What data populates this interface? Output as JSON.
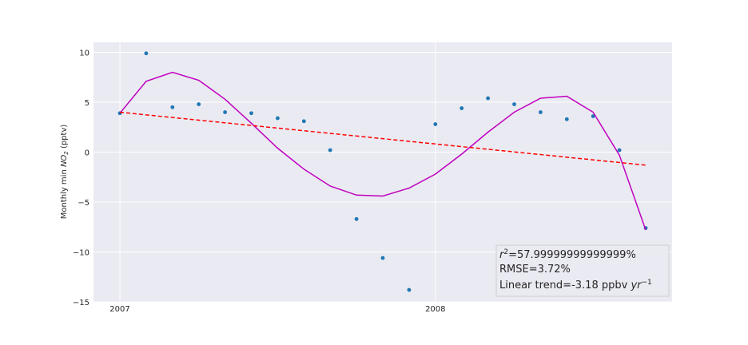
{
  "chart_data": {
    "type": "scatter",
    "ylabel": "Monthly min NO2 (pptv)",
    "ylabel_prefix": "Monthly min ",
    "ylabel_symbol": "NO",
    "ylabel_sub": "2",
    "ylabel_suffix": " (pptv)",
    "xlim": [
      0,
      20
    ],
    "ylim": [
      -15,
      11
    ],
    "x_ticks": [
      {
        "x": 0,
        "label": "2007"
      },
      {
        "x": 12,
        "label": "2008"
      }
    ],
    "y_ticks": [
      {
        "y": 10,
        "label": "10"
      },
      {
        "y": 5,
        "label": "5"
      },
      {
        "y": 0,
        "label": "0"
      },
      {
        "y": -5,
        "label": "−5"
      },
      {
        "y": -10,
        "label": "−10"
      },
      {
        "y": -15,
        "label": "−15"
      }
    ],
    "grid": true,
    "series": [
      {
        "kind": "points",
        "color": "#1f77b4",
        "x": [
          0,
          1,
          2,
          3,
          4,
          5,
          6,
          7,
          8,
          9,
          10,
          11,
          12,
          13,
          14,
          15,
          16,
          17,
          18,
          19,
          20
        ],
        "y": [
          3.9,
          9.9,
          4.5,
          4.8,
          4.0,
          3.9,
          3.4,
          3.1,
          0.2,
          -6.7,
          -10.6,
          -13.8,
          2.8,
          4.4,
          5.4,
          4.8,
          4.0,
          3.3,
          3.6,
          0.2,
          -7.6
        ]
      },
      {
        "kind": "line",
        "style": "solid",
        "color": "#bf00bf",
        "x": [
          0,
          1,
          2,
          3,
          4,
          5,
          6,
          7,
          8,
          9,
          10,
          11,
          12,
          13,
          14,
          15,
          16,
          17,
          18,
          19,
          20
        ],
        "y": [
          3.9,
          7.1,
          8.0,
          7.2,
          5.3,
          2.9,
          0.4,
          -1.7,
          -3.4,
          -4.3,
          -4.4,
          -3.6,
          -2.2,
          -0.2,
          2.0,
          4.0,
          5.4,
          5.6,
          4.0,
          -0.3,
          -7.8
        ]
      },
      {
        "kind": "line",
        "style": "dashed",
        "color": "#ff0000",
        "x": [
          0,
          20
        ],
        "y": [
          4.0,
          -1.3
        ]
      }
    ],
    "annotation": {
      "r2_symbol": "r",
      "r2_sup": "2",
      "r2_value": "=57.99999999999999%",
      "rmse": "RMSE=3.72%",
      "trend_prefix": "Linear trend=-3.18 ppbv ",
      "trend_unit": "yr",
      "trend_sup": "−1"
    },
    "colors": {
      "background": "#eaeaf2",
      "grid": "#ffffff"
    }
  }
}
